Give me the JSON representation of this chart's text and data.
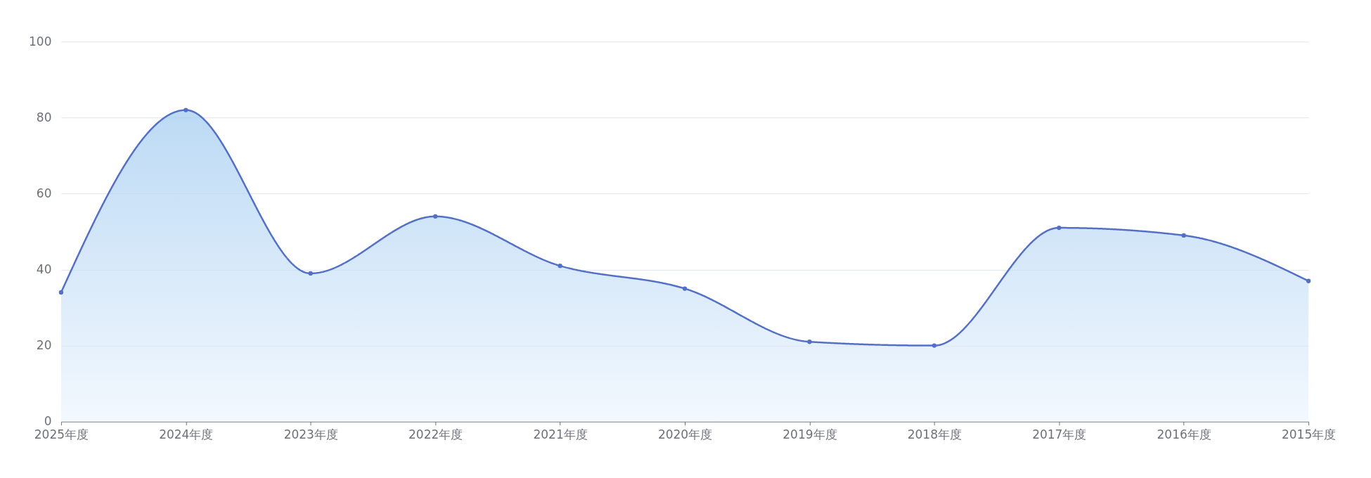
{
  "chart_data": {
    "type": "area",
    "categories": [
      "2025年度",
      "2024年度",
      "2023年度",
      "2022年度",
      "2021年度",
      "2020年度",
      "2019年度",
      "2018年度",
      "2017年度",
      "2016年度",
      "2015年度"
    ],
    "series": [
      {
        "color": "#5470c6",
        "values": [
          34,
          82,
          39,
          54,
          41,
          35,
          21,
          20,
          51,
          49,
          37
        ]
      }
    ],
    "ylim": [
      0,
      100
    ],
    "yticks": [
      0,
      20,
      40,
      60,
      80,
      100
    ],
    "grid": "y",
    "marker": "circle",
    "line_style": "solid"
  }
}
